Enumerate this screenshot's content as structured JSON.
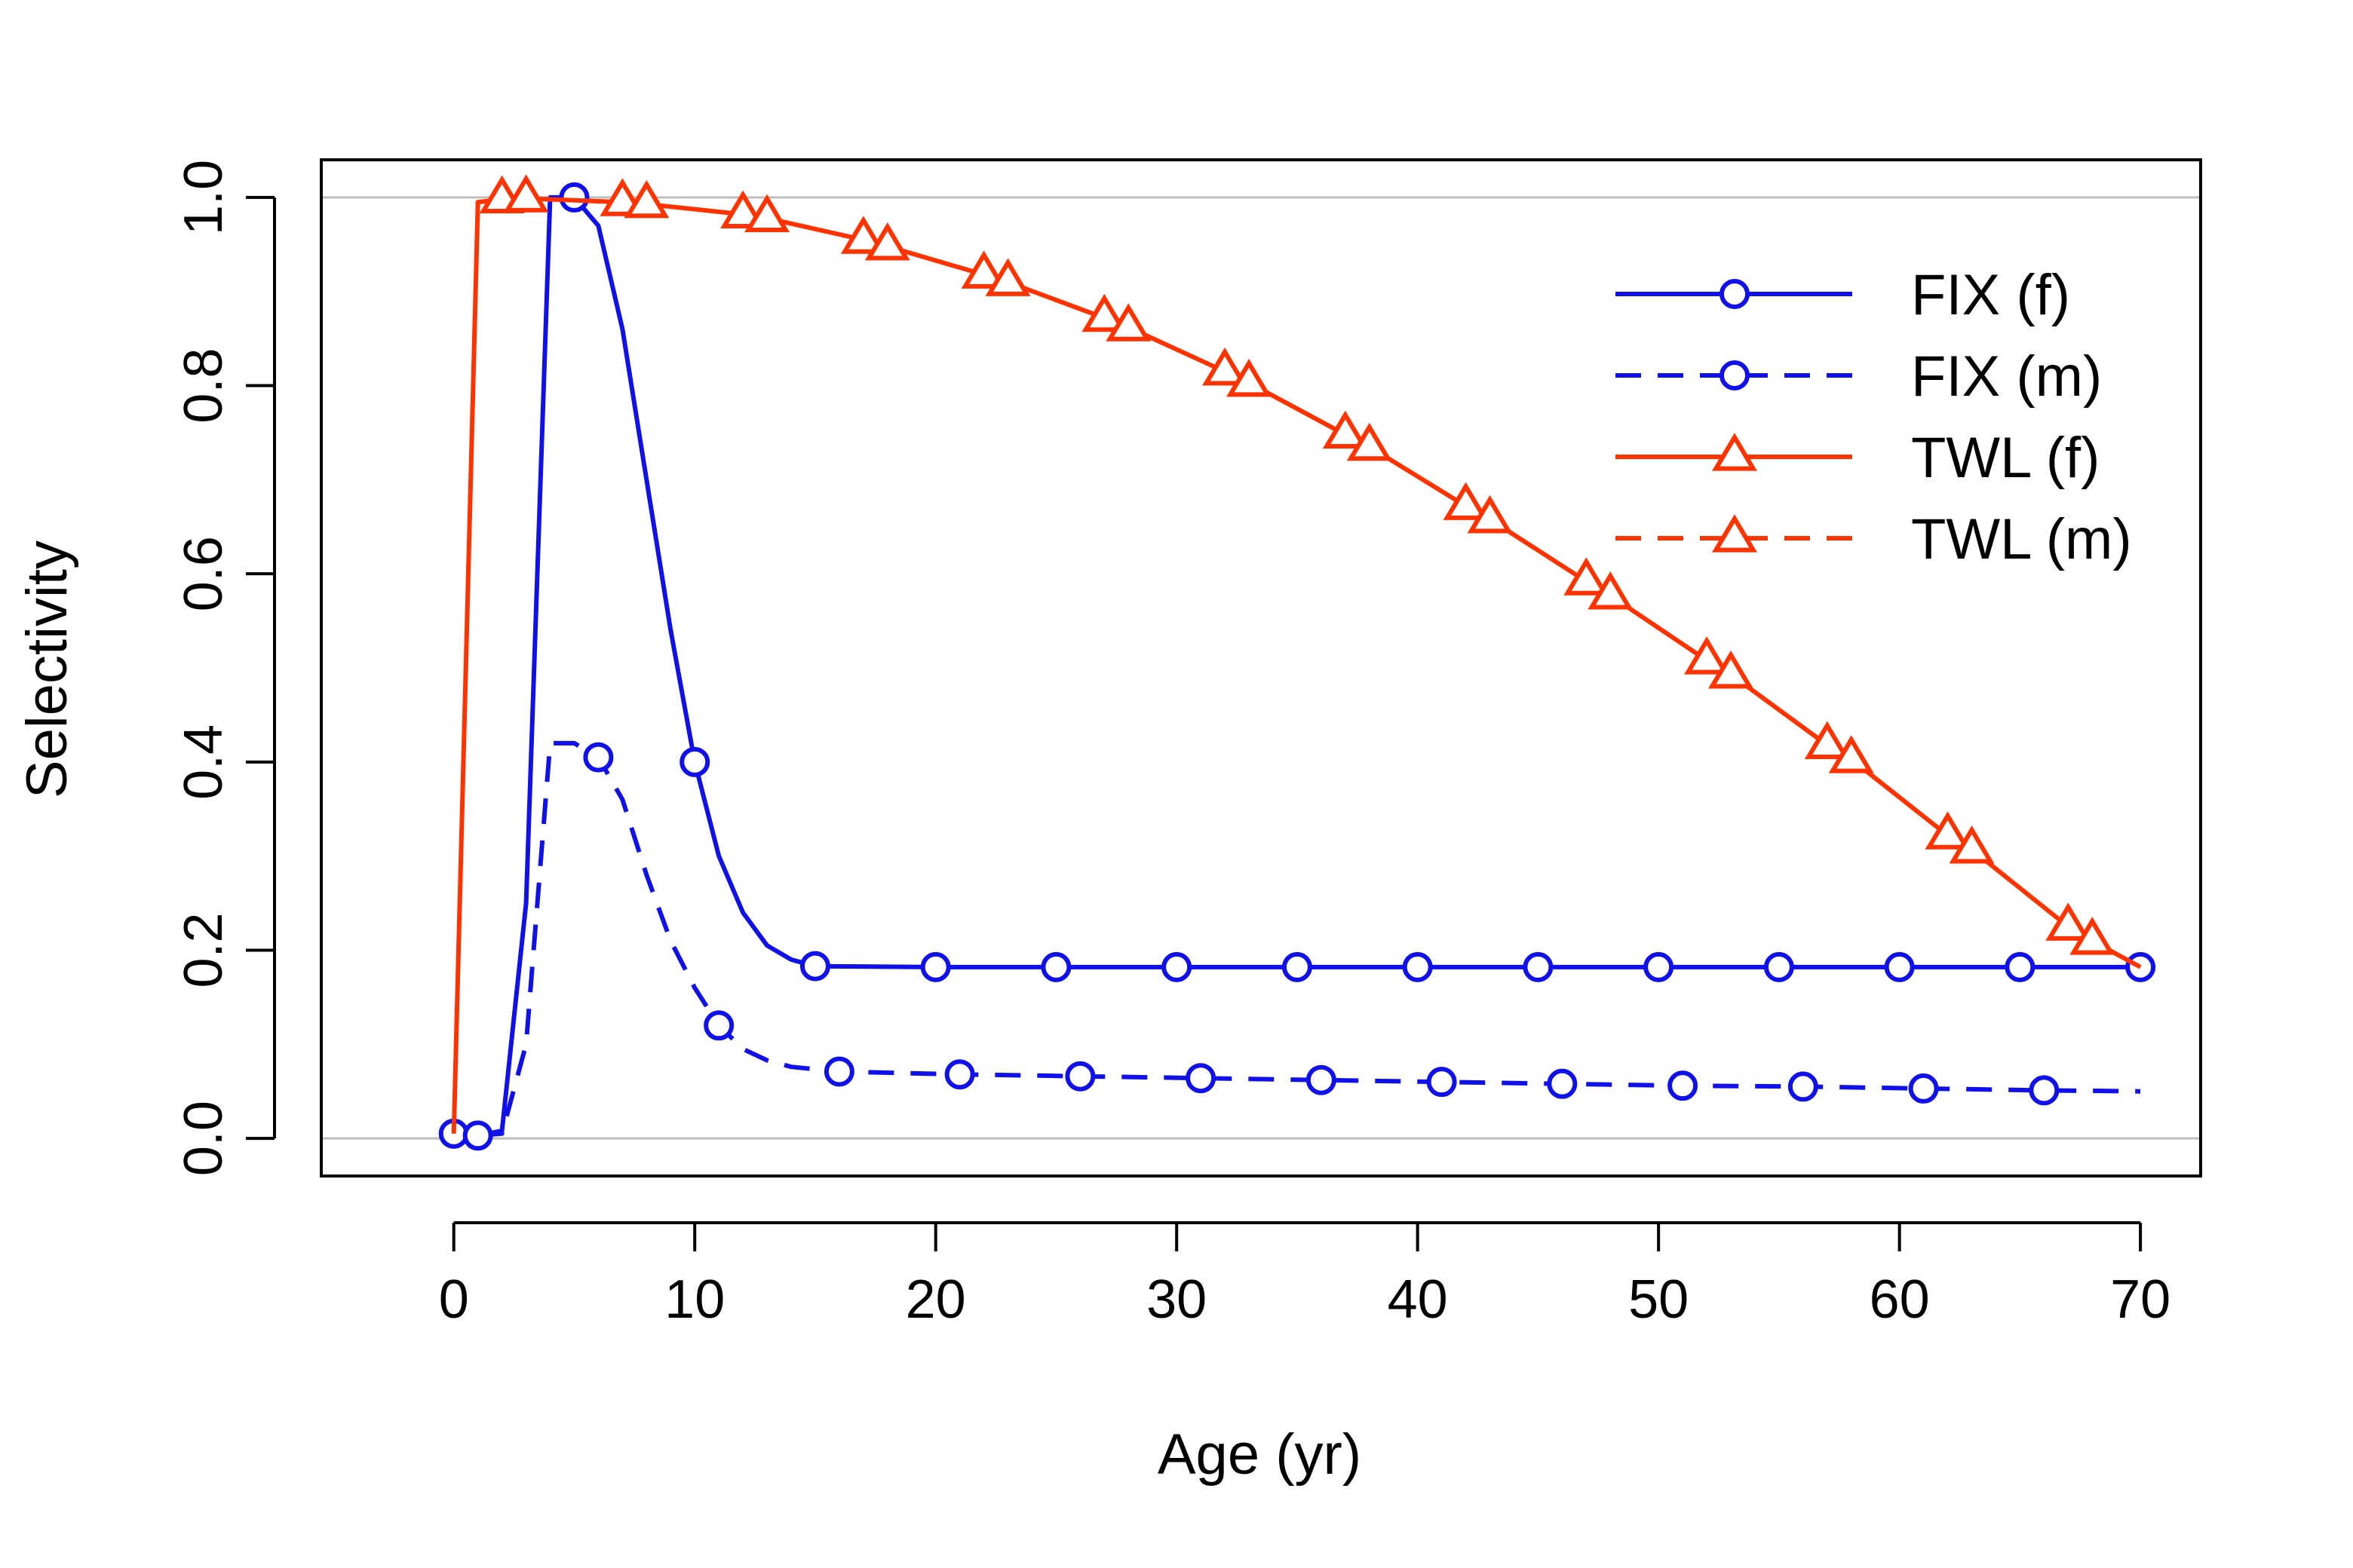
{
  "chart_data": {
    "type": "line",
    "title": "",
    "xlabel": "Age (yr)",
    "ylabel": "Selectivity",
    "xlim": [
      -5.5,
      72.5
    ],
    "ylim": [
      -0.04,
      1.04
    ],
    "xticks": [
      0,
      10,
      20,
      30,
      40,
      50,
      60,
      70
    ],
    "yticks": [
      0.0,
      0.2,
      0.4,
      0.6,
      0.8,
      1.0
    ],
    "ytick_labels": [
      "0.0",
      "0.2",
      "0.4",
      "0.6",
      "0.8",
      "1.0"
    ],
    "reference_lines": [
      0,
      1
    ],
    "grid": false,
    "legend_position": "top-right",
    "series": [
      {
        "name": "FIX (f)",
        "color": "#1010e8",
        "linestyle": "solid",
        "marker": "circle",
        "x": [
          0,
          1,
          2,
          3,
          4,
          5,
          6,
          7,
          8,
          9,
          10,
          11,
          12,
          13,
          14,
          15,
          20,
          25,
          30,
          35,
          40,
          45,
          50,
          55,
          60,
          65,
          70
        ],
        "y": [
          0.005,
          0.003,
          0.008,
          0.25,
          1.0,
          1.0,
          0.97,
          0.86,
          0.7,
          0.54,
          0.4,
          0.3,
          0.24,
          0.205,
          0.19,
          0.183,
          0.182,
          0.182,
          0.182,
          0.182,
          0.182,
          0.182,
          0.182,
          0.182,
          0.182,
          0.182,
          0.182
        ],
        "marker_x": [
          0,
          5,
          10,
          15,
          20,
          25,
          30,
          35,
          40,
          45,
          50,
          55,
          60,
          65,
          70
        ]
      },
      {
        "name": "FIX (m)",
        "color": "#1010e8",
        "linestyle": "dashed",
        "marker": "circle",
        "x": [
          1,
          2,
          3,
          4,
          5,
          6,
          7,
          8,
          9,
          10,
          11,
          12,
          13,
          14,
          16,
          21,
          26,
          31,
          36,
          41,
          46,
          51,
          56,
          61,
          66,
          70
        ],
        "y": [
          0.003,
          0.005,
          0.1,
          0.42,
          0.42,
          0.405,
          0.36,
          0.28,
          0.21,
          0.16,
          0.12,
          0.095,
          0.083,
          0.076,
          0.071,
          0.068,
          0.066,
          0.064,
          0.062,
          0.06,
          0.058,
          0.056,
          0.055,
          0.053,
          0.051,
          0.05
        ],
        "marker_x": [
          1,
          6,
          11,
          16,
          21,
          26,
          31,
          36,
          41,
          46,
          51,
          56,
          61,
          66
        ]
      },
      {
        "name": "TWL (f)",
        "color": "#ff3300",
        "linestyle": "solid",
        "marker": "triangle",
        "x": [
          0,
          1,
          2,
          3,
          7,
          8,
          12,
          13,
          17,
          18,
          22,
          23,
          27,
          28,
          32,
          33,
          37,
          38,
          42,
          43,
          47,
          48,
          52,
          53,
          57,
          58,
          62,
          63,
          67,
          68,
          70
        ],
        "y": [
          0.005,
          0.995,
          0.998,
          0.999,
          0.995,
          0.993,
          0.982,
          0.978,
          0.955,
          0.948,
          0.918,
          0.91,
          0.872,
          0.862,
          0.815,
          0.803,
          0.748,
          0.735,
          0.672,
          0.658,
          0.592,
          0.577,
          0.508,
          0.493,
          0.418,
          0.403,
          0.322,
          0.307,
          0.225,
          0.21,
          0.182
        ],
        "marker_x": [
          2,
          3,
          7,
          8,
          12,
          13,
          17,
          18,
          22,
          23,
          27,
          28,
          32,
          33,
          37,
          38,
          42,
          43,
          47,
          48,
          52,
          53,
          57,
          58,
          62,
          63,
          67,
          68
        ]
      },
      {
        "name": "TWL (m)",
        "color": "#ff3300",
        "linestyle": "dashed",
        "marker": "triangle",
        "x": [],
        "y": [],
        "marker_x": []
      }
    ]
  }
}
